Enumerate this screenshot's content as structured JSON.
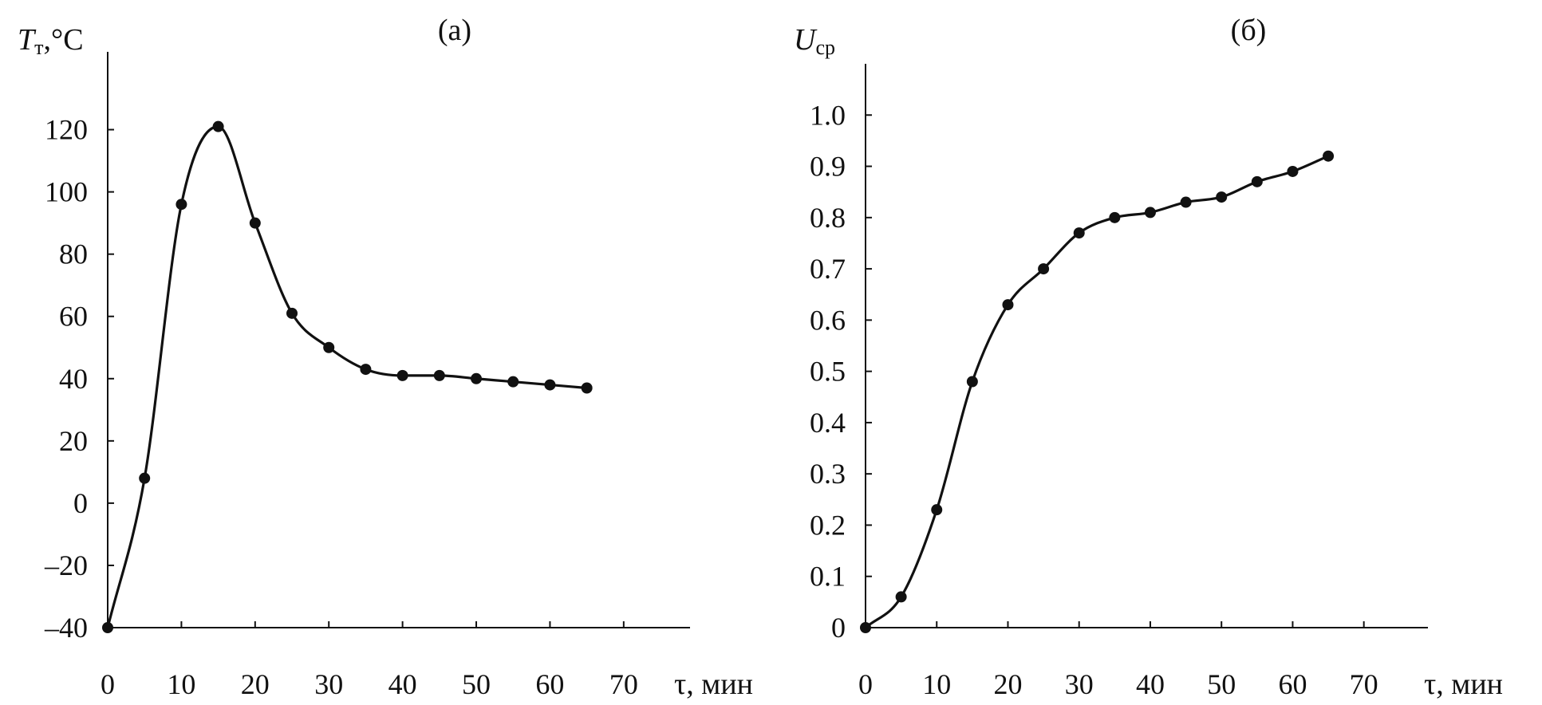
{
  "chart_data": [
    {
      "type": "line",
      "panel_label": "(а)",
      "ylabel_main": "T",
      "ylabel_sub": "т",
      "ylabel_unit": ",°C",
      "xlabel": "τ, мин",
      "xticks": [
        0,
        10,
        20,
        30,
        40,
        50,
        60,
        70
      ],
      "yticks": [
        -40,
        -20,
        0,
        20,
        40,
        60,
        80,
        100,
        120
      ],
      "ytick_labels": [
        "–40",
        "–20",
        "0",
        "20",
        "40",
        "60",
        "80",
        "100",
        "120"
      ],
      "xlim": [
        0,
        79
      ],
      "ylim": [
        -40,
        145
      ],
      "series": [
        {
          "x": [
            0,
            5,
            10,
            15,
            20,
            25,
            30,
            35,
            40,
            45,
            50,
            55,
            60,
            65
          ],
          "y": [
            -40,
            8,
            96,
            121,
            90,
            61,
            50,
            43,
            41,
            41,
            40,
            39,
            38,
            37
          ]
        }
      ],
      "grid": false
    },
    {
      "type": "line",
      "panel_label": "(б)",
      "ylabel_main": "U",
      "ylabel_sub": "ср",
      "xlabel": "τ, мин",
      "xticks": [
        0,
        10,
        20,
        30,
        40,
        50,
        60,
        70
      ],
      "yticks": [
        0,
        0.1,
        0.2,
        0.3,
        0.4,
        0.5,
        0.6,
        0.7,
        0.8,
        0.9,
        1.0
      ],
      "ytick_labels": [
        "0",
        "0.1",
        "0.2",
        "0.3",
        "0.4",
        "0.5",
        "0.6",
        "0.7",
        "0.8",
        "0.9",
        "1.0"
      ],
      "xlim": [
        0,
        79
      ],
      "ylim": [
        0,
        1.1
      ],
      "series": [
        {
          "x": [
            0,
            5,
            10,
            15,
            20,
            25,
            30,
            35,
            40,
            45,
            50,
            55,
            60,
            65
          ],
          "y": [
            0,
            0.06,
            0.23,
            0.48,
            0.63,
            0.7,
            0.77,
            0.8,
            0.81,
            0.83,
            0.84,
            0.87,
            0.89,
            0.92
          ]
        }
      ],
      "grid": false
    }
  ]
}
